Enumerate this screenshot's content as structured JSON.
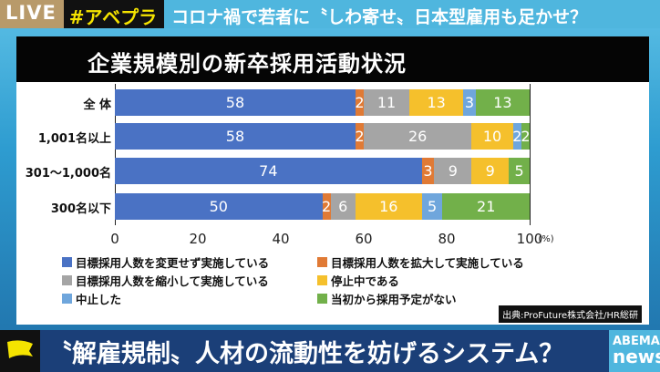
{
  "topbar": {
    "live": "LIVE",
    "hashtag": "#アベプラ",
    "headline": "コロナ禍で若者に〝しわ寄せ〟日本型雇用も足かせ？"
  },
  "chart_data": {
    "type": "bar",
    "orientation": "horizontal",
    "stacked": true,
    "title": "企業規模別の新卒採用活動状況",
    "categories": [
      "全 体",
      "1,001名以上",
      "301～1,000名",
      "300名以下"
    ],
    "series": [
      {
        "name": "目標採用人数を変更せず実施している",
        "color": "#4a72c4",
        "values": [
          58,
          58,
          74,
          50
        ]
      },
      {
        "name": "目標採用人数を拡大して実施している",
        "color": "#e07a35",
        "values": [
          2,
          2,
          3,
          2
        ]
      },
      {
        "name": "目標採用人数を縮小して実施している",
        "color": "#a5a5a5",
        "values": [
          11,
          26,
          9,
          6
        ]
      },
      {
        "name": "停止中である",
        "color": "#f5c02c",
        "values": [
          13,
          10,
          9,
          16
        ]
      },
      {
        "name": "中止した",
        "color": "#6fa6dc",
        "values": [
          3,
          2,
          0,
          5
        ]
      },
      {
        "name": "当初から採用予定がない",
        "color": "#72b04a",
        "values": [
          13,
          2,
          5,
          21
        ]
      }
    ],
    "xlim": [
      0,
      100
    ],
    "xticks": [
      "0",
      "20",
      "40",
      "60",
      "80",
      "100"
    ],
    "xunit": "(%)",
    "legend": "bottom",
    "source": "出典:ProFuture株式会社/HR総研"
  },
  "banner": {
    "caption": "〝解雇規制〟人材の流動性を妨げるシステム？",
    "logo_top": "ABEMA",
    "logo_bottom": "news"
  }
}
